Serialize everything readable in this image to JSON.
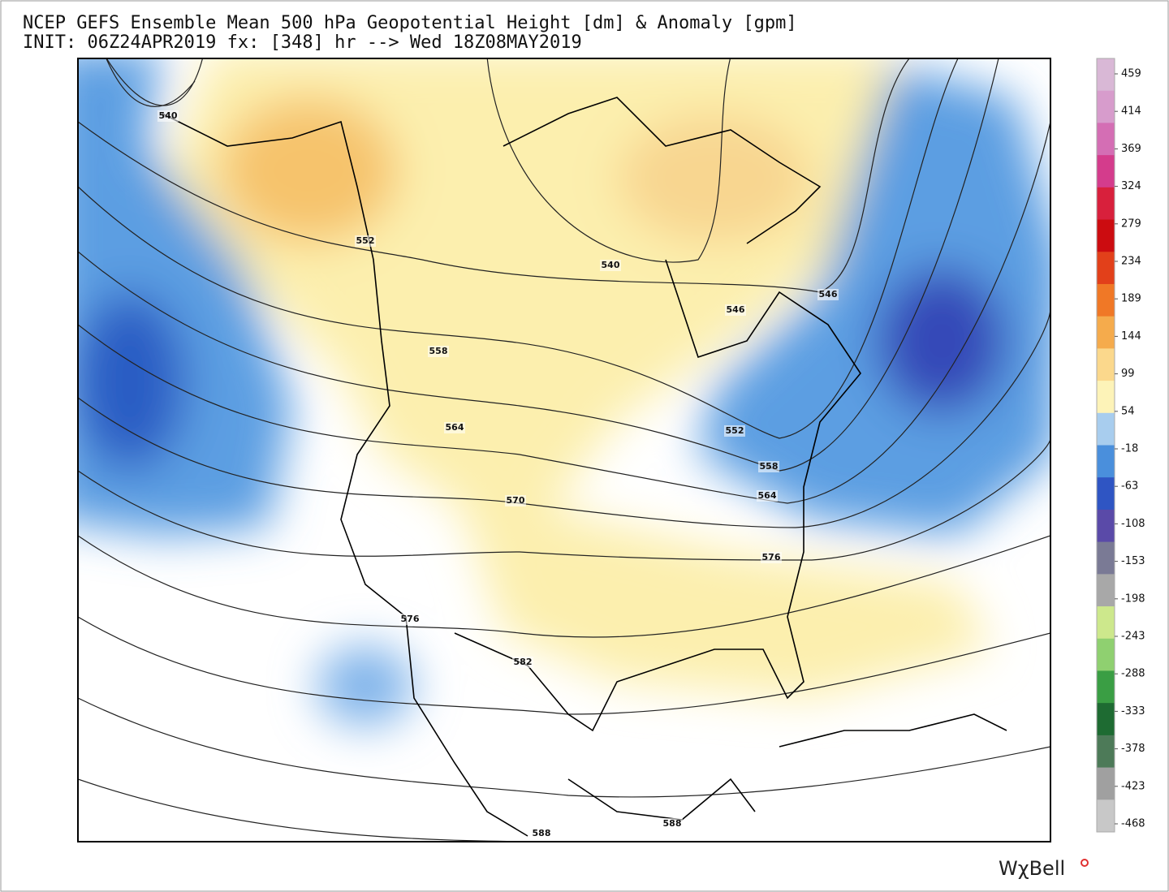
{
  "header": {
    "title": "NCEP GEFS Ensemble Mean 500 hPa Geopotential Height [dm] & Anomaly [gpm]",
    "subtitle": "INIT: 06Z24APR2019 fx: [348] hr --> Wed 18Z08MAY2019"
  },
  "contour_labels": [
    540,
    540,
    546,
    546,
    552,
    552,
    558,
    558,
    564,
    564,
    570,
    576,
    576,
    582,
    588,
    588
  ],
  "colorbar": {
    "ticks": [
      459,
      414,
      369,
      324,
      279,
      234,
      189,
      144,
      99,
      54,
      -18,
      -63,
      -108,
      -153,
      -198,
      -243,
      -288,
      -333,
      -378,
      -423,
      -468
    ],
    "colors": [
      "#d9b8d6",
      "#d79ccc",
      "#d46eb4",
      "#d43c8c",
      "#d8203c",
      "#cc0c10",
      "#e2401a",
      "#f07826",
      "#f5ab4c",
      "#fbd88c",
      "#fdf3b8",
      "#a8cdee",
      "#4a8fdc",
      "#2f55c3",
      "#5a4aa8",
      "#7a7a95",
      "#a8a8a8",
      "#cde88c",
      "#8fd070",
      "#3a9e44",
      "#1e6b32",
      "#4d7a58",
      "#a0a0a0",
      "#c8c8c8"
    ]
  },
  "logo": "WχBell"
}
